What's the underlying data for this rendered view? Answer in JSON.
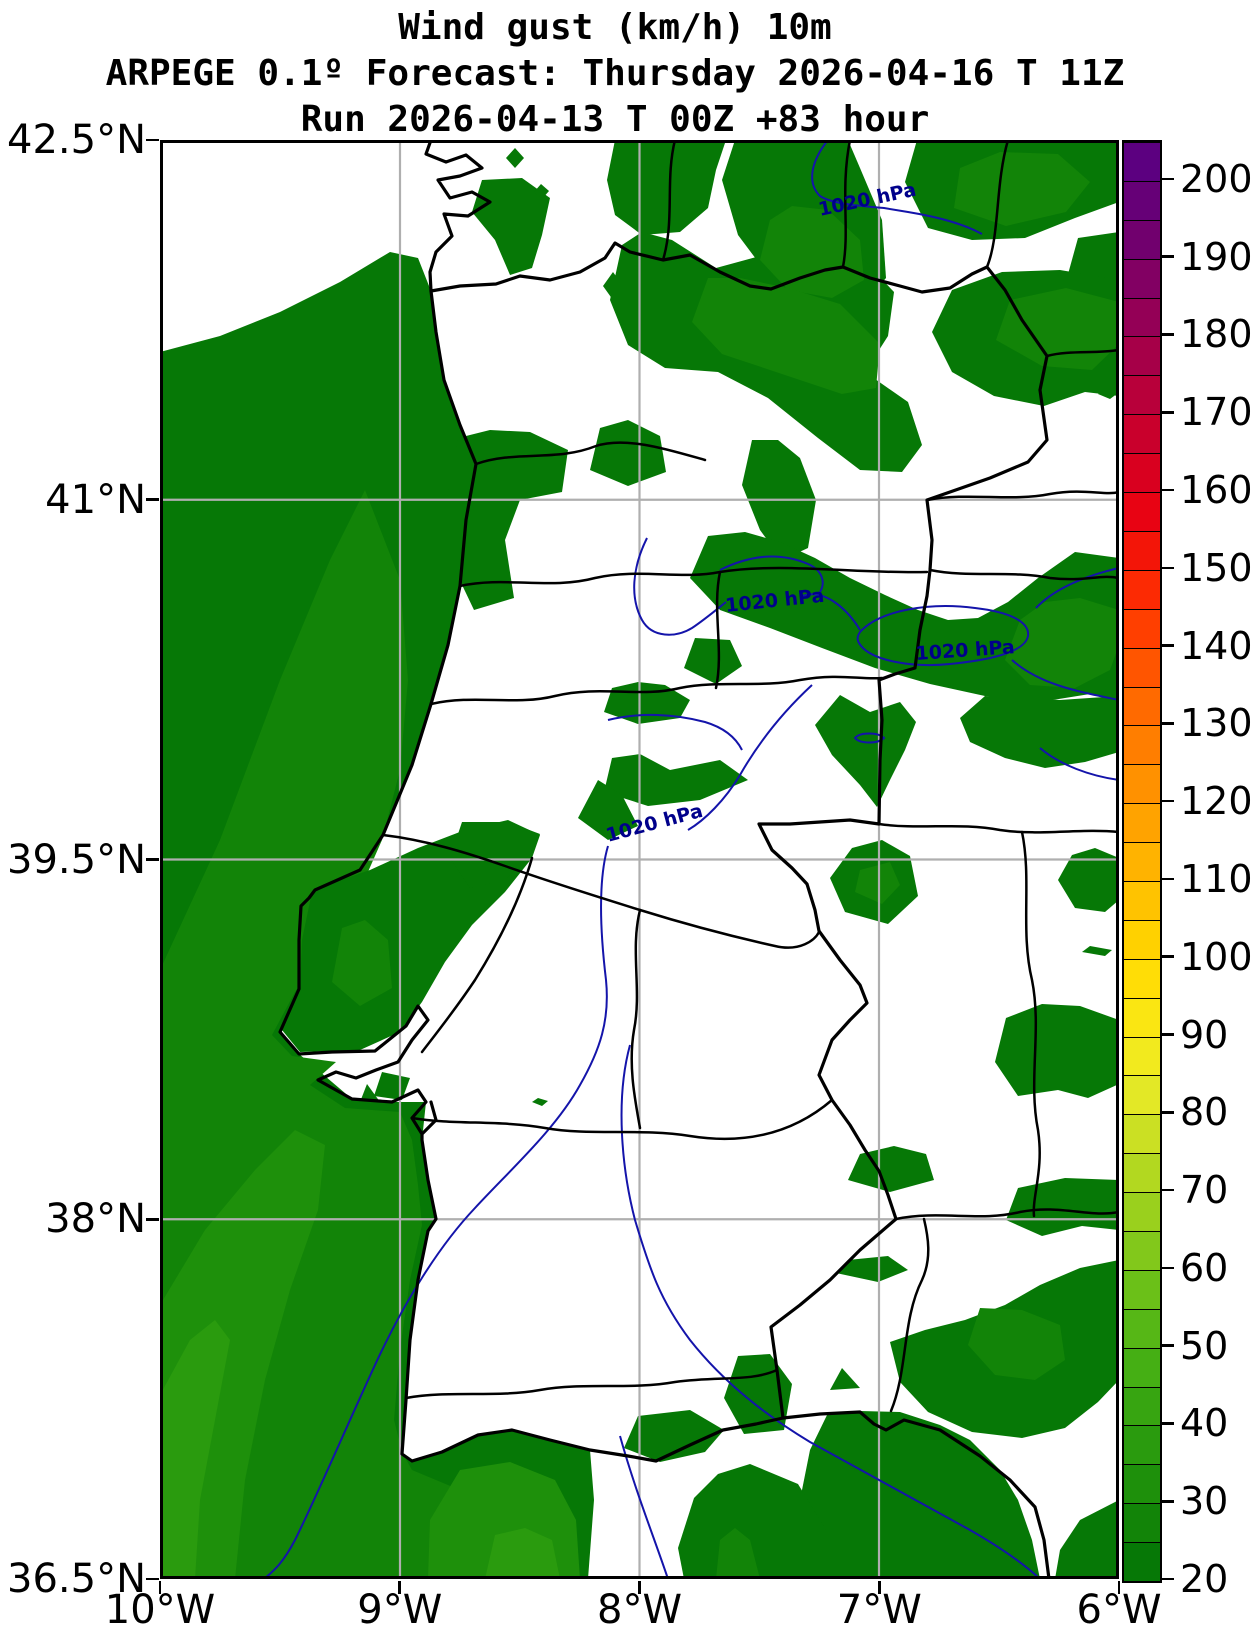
{
  "title": {
    "line1": "Wind gust (km/h) 10m",
    "line2": "ARPEGE 0.1º Forecast: Thursday 2026-04-16 T 11Z",
    "line3": "Run 2026-04-13 T 00Z +83 hour"
  },
  "axes": {
    "lat_ticks": [
      "42.5°N",
      "41°N",
      "39.5°N",
      "38°N",
      "36.5°N"
    ],
    "lon_ticks": [
      "10°W",
      "9°W",
      "8°W",
      "7°W",
      "6°W"
    ]
  },
  "colorbar": {
    "title": "",
    "min": 20,
    "max": 205,
    "segment_step": 5,
    "tick_labels": [
      "20",
      "30",
      "40",
      "50",
      "60",
      "70",
      "80",
      "90",
      "100",
      "110",
      "120",
      "130",
      "140",
      "150",
      "160",
      "170",
      "180",
      "190",
      "200"
    ],
    "colors_bottom_to_top": [
      "#067806",
      "#128408",
      "#1E900B",
      "#2A9B0E",
      "#37A511",
      "#45AF14",
      "#56B716",
      "#6BC018",
      "#82C81B",
      "#9AD01D",
      "#B2D820",
      "#CBE023",
      "#E3E826",
      "#F2EA1E",
      "#FAE612",
      "#FFDD06",
      "#FFD100",
      "#FFC300",
      "#FFB300",
      "#FFA300",
      "#FF9100",
      "#FF7E00",
      "#FF6A00",
      "#FF5500",
      "#FF3F00",
      "#FC2A03",
      "#F31508",
      "#E80313",
      "#D9001F",
      "#C9002C",
      "#B8003A",
      "#A60048",
      "#940056",
      "#820063",
      "#71006E",
      "#660077",
      "#5C0080"
    ]
  },
  "map": {
    "isobar_label": "1020 hPa"
  },
  "chart_data": {
    "type": "heatmap",
    "title": "Wind gust (km/h) 10m",
    "model_run": "Run 2026-04-13 T 00Z +83 hour",
    "valid_time": "Thursday 2026-04-16 T 11Z",
    "scale_range": [
      20,
      205
    ],
    "scale_unit": "km/h",
    "isobar_value_hpa": 1020,
    "lat_range": [
      36.5,
      42.5
    ],
    "lon_range": [
      -10,
      -6
    ]
  },
  "colors": {
    "band20": "#067806",
    "band25": "#128408",
    "band30": "#1E900B",
    "band35": "#2A9B0E",
    "grid": "#AFAFAF",
    "boundary": "#000000",
    "isobar": "#1414AA",
    "isobar_label": "#00008B",
    "frame": "#000000",
    "background": "#FFFFFF"
  }
}
